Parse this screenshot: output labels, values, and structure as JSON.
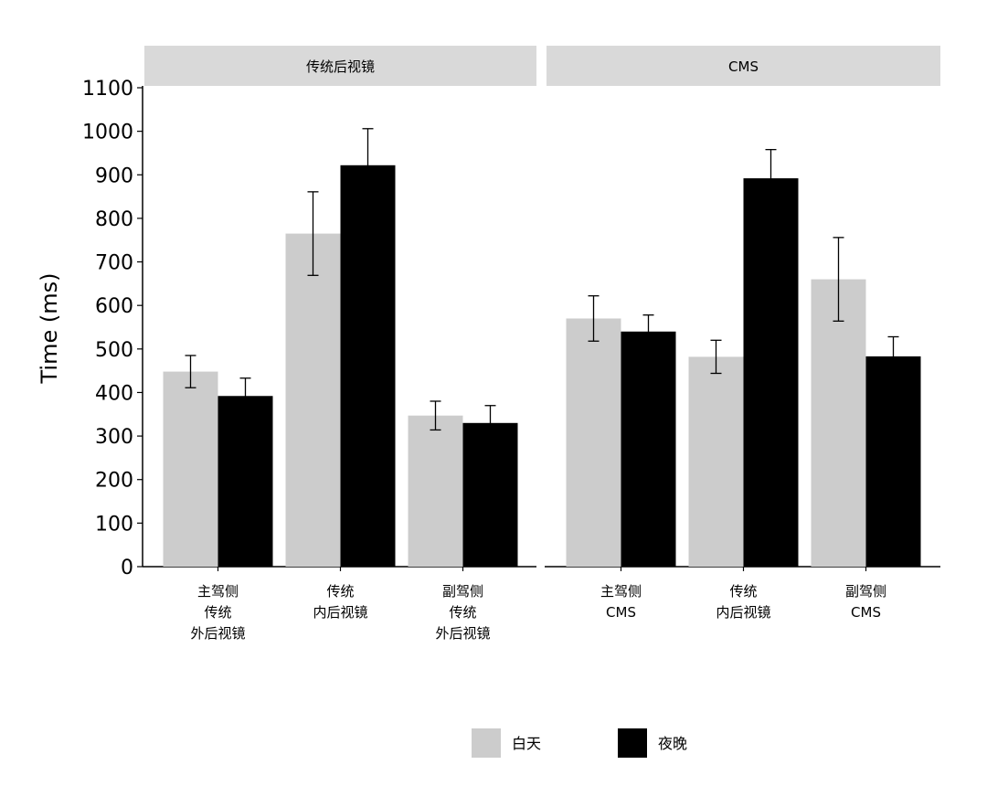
{
  "chart_data": {
    "type": "bar",
    "ylabel": "Time (ms)",
    "ylim": [
      0,
      1100
    ],
    "yticks": [
      0,
      100,
      200,
      300,
      400,
      500,
      600,
      700,
      800,
      900,
      1000,
      1100
    ],
    "grid": false,
    "legend_position": "bottom",
    "series": [
      {
        "name": "白天",
        "color": "#cccccc"
      },
      {
        "name": "夜晚",
        "color": "#000000"
      }
    ],
    "panels": [
      {
        "title": "传统后视镜",
        "categories": [
          [
            "主驾侧",
            "传统",
            "外后视镜"
          ],
          [
            "传统",
            "内后视镜"
          ],
          [
            "副驾侧",
            "传统",
            "外后视镜"
          ]
        ],
        "values": [
          [
            448,
            392
          ],
          [
            765,
            922
          ],
          [
            347,
            330
          ]
        ],
        "errors": [
          [
            37,
            41
          ],
          [
            96,
            84
          ],
          [
            33,
            40
          ]
        ]
      },
      {
        "title": "CMS",
        "categories": [
          [
            "主驾侧",
            "CMS"
          ],
          [
            "传统",
            "内后视镜"
          ],
          [
            "副驾侧",
            "CMS"
          ]
        ],
        "values": [
          [
            570,
            540
          ],
          [
            482,
            892
          ],
          [
            660,
            483
          ]
        ],
        "errors": [
          [
            52,
            38
          ],
          [
            38,
            66
          ],
          [
            96,
            45
          ]
        ]
      }
    ]
  }
}
